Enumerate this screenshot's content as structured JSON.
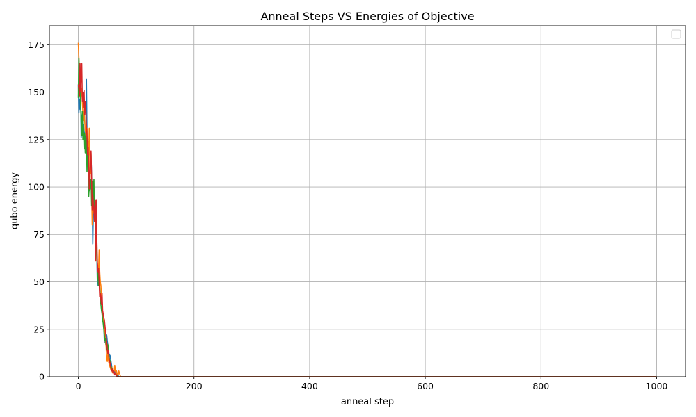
{
  "chart_data": {
    "type": "line",
    "title": "Anneal Steps VS Energies of Objective",
    "xlabel": "anneal step",
    "ylabel": "qubo energy",
    "xlim": [
      -50,
      1050
    ],
    "ylim": [
      0,
      185
    ],
    "xticks": [
      0,
      200,
      400,
      600,
      800,
      1000
    ],
    "yticks": [
      0,
      25,
      50,
      75,
      100,
      125,
      150,
      175
    ],
    "grid": true,
    "legend": "top-right",
    "series": [
      {
        "color": "#1f77b4",
        "points": [
          [
            0,
            154
          ],
          [
            1,
            139
          ],
          [
            2,
            146
          ],
          [
            3,
            141
          ],
          [
            4,
            152
          ],
          [
            5,
            126
          ],
          [
            6,
            138
          ],
          [
            7,
            130
          ],
          [
            8,
            127
          ],
          [
            9,
            133
          ],
          [
            10,
            129
          ],
          [
            11,
            121
          ],
          [
            12,
            129
          ],
          [
            13,
            126
          ],
          [
            14,
            157
          ],
          [
            15,
            128
          ],
          [
            16,
            122
          ],
          [
            17,
            124
          ],
          [
            18,
            110
          ],
          [
            19,
            103
          ],
          [
            20,
            107
          ],
          [
            22,
            117
          ],
          [
            24,
            95
          ],
          [
            25,
            70
          ],
          [
            26,
            86
          ],
          [
            27,
            98
          ],
          [
            28,
            93
          ],
          [
            30,
            83
          ],
          [
            31,
            82
          ],
          [
            32,
            64
          ],
          [
            33,
            48
          ],
          [
            34,
            52
          ],
          [
            35,
            56
          ],
          [
            36,
            49
          ],
          [
            38,
            42
          ],
          [
            40,
            44
          ],
          [
            41,
            40
          ],
          [
            42,
            31
          ],
          [
            43,
            32
          ],
          [
            44,
            27
          ],
          [
            45,
            18
          ],
          [
            46,
            25
          ],
          [
            48,
            21
          ],
          [
            49,
            22
          ],
          [
            50,
            19
          ],
          [
            52,
            14
          ],
          [
            53,
            12
          ],
          [
            55,
            11
          ],
          [
            57,
            7
          ],
          [
            58,
            5
          ],
          [
            60,
            3
          ],
          [
            62,
            2
          ],
          [
            64,
            3
          ],
          [
            66,
            1
          ],
          [
            68,
            1
          ],
          [
            70,
            0
          ],
          [
            80,
            0
          ],
          [
            1000,
            0
          ]
        ]
      },
      {
        "color": "#ff7f0e",
        "points": [
          [
            0,
            176
          ],
          [
            1,
            168
          ],
          [
            2,
            160
          ],
          [
            3,
            155
          ],
          [
            4,
            157
          ],
          [
            5,
            148
          ],
          [
            6,
            152
          ],
          [
            7,
            145
          ],
          [
            8,
            139
          ],
          [
            9,
            135
          ],
          [
            10,
            141
          ],
          [
            11,
            135
          ],
          [
            12,
            130
          ],
          [
            13,
            128
          ],
          [
            14,
            125
          ],
          [
            15,
            131
          ],
          [
            16,
            126
          ],
          [
            17,
            122
          ],
          [
            18,
            117
          ],
          [
            19,
            131
          ],
          [
            20,
            110
          ],
          [
            21,
            107
          ],
          [
            22,
            118
          ],
          [
            23,
            100
          ],
          [
            24,
            80
          ],
          [
            25,
            95
          ],
          [
            26,
            92
          ],
          [
            27,
            86
          ],
          [
            28,
            89
          ],
          [
            29,
            84
          ],
          [
            30,
            72
          ],
          [
            31,
            75
          ],
          [
            32,
            63
          ],
          [
            33,
            59
          ],
          [
            34,
            57
          ],
          [
            35,
            56
          ],
          [
            36,
            67
          ],
          [
            37,
            55
          ],
          [
            38,
            50
          ],
          [
            39,
            48
          ],
          [
            40,
            42
          ],
          [
            41,
            40
          ],
          [
            42,
            33
          ],
          [
            43,
            30
          ],
          [
            44,
            27
          ],
          [
            45,
            26
          ],
          [
            46,
            22
          ],
          [
            47,
            18
          ],
          [
            48,
            16
          ],
          [
            49,
            10
          ],
          [
            50,
            8
          ],
          [
            51,
            12
          ],
          [
            52,
            9
          ],
          [
            53,
            7
          ],
          [
            54,
            6
          ],
          [
            55,
            5
          ],
          [
            56,
            4
          ],
          [
            57,
            3
          ],
          [
            58,
            5
          ],
          [
            59,
            2
          ],
          [
            60,
            3
          ],
          [
            61,
            2
          ],
          [
            62,
            3
          ],
          [
            63,
            6
          ],
          [
            64,
            3
          ],
          [
            65,
            2
          ],
          [
            66,
            3
          ],
          [
            67,
            1
          ],
          [
            68,
            2
          ],
          [
            69,
            1
          ],
          [
            70,
            3
          ],
          [
            71,
            2
          ],
          [
            72,
            1
          ],
          [
            73,
            0
          ],
          [
            80,
            0
          ],
          [
            1000,
            0
          ]
        ]
      },
      {
        "color": "#2ca02c",
        "points": [
          [
            0,
            147
          ],
          [
            1,
            168
          ],
          [
            2,
            156
          ],
          [
            3,
            151
          ],
          [
            4,
            143
          ],
          [
            5,
            134
          ],
          [
            6,
            127
          ],
          [
            7,
            140
          ],
          [
            8,
            125
          ],
          [
            9,
            131
          ],
          [
            10,
            120
          ],
          [
            11,
            128
          ],
          [
            12,
            118
          ],
          [
            13,
            127
          ],
          [
            14,
            124
          ],
          [
            15,
            108
          ],
          [
            16,
            119
          ],
          [
            17,
            113
          ],
          [
            18,
            95
          ],
          [
            19,
            101
          ],
          [
            20,
            98
          ],
          [
            22,
            104
          ],
          [
            23,
            90
          ],
          [
            24,
            97
          ],
          [
            25,
            103
          ],
          [
            26,
            95
          ],
          [
            27,
            104
          ],
          [
            28,
            82
          ],
          [
            29,
            88
          ],
          [
            30,
            74
          ],
          [
            31,
            71
          ],
          [
            32,
            66
          ],
          [
            33,
            57
          ],
          [
            34,
            52
          ],
          [
            35,
            48
          ],
          [
            36,
            50
          ],
          [
            37,
            47
          ],
          [
            38,
            41
          ],
          [
            39,
            38
          ],
          [
            40,
            35
          ],
          [
            41,
            33
          ],
          [
            42,
            30
          ],
          [
            43,
            28
          ],
          [
            44,
            25
          ],
          [
            45,
            22
          ],
          [
            46,
            19
          ],
          [
            47,
            20
          ],
          [
            48,
            17
          ],
          [
            49,
            15
          ],
          [
            50,
            14
          ],
          [
            51,
            17
          ],
          [
            52,
            13
          ],
          [
            53,
            11
          ],
          [
            54,
            9
          ],
          [
            55,
            8
          ],
          [
            56,
            6
          ],
          [
            57,
            5
          ],
          [
            58,
            4
          ],
          [
            59,
            3
          ],
          [
            60,
            3
          ],
          [
            62,
            2
          ],
          [
            64,
            1
          ],
          [
            66,
            1
          ],
          [
            68,
            0
          ],
          [
            80,
            0
          ],
          [
            1000,
            0
          ]
        ]
      },
      {
        "color": "#d62728",
        "points": [
          [
            0,
            154
          ],
          [
            1,
            152
          ],
          [
            2,
            148
          ],
          [
            3,
            165
          ],
          [
            4,
            150
          ],
          [
            5,
            160
          ],
          [
            6,
            165
          ],
          [
            7,
            145
          ],
          [
            8,
            150
          ],
          [
            9,
            142
          ],
          [
            10,
            151
          ],
          [
            11,
            138
          ],
          [
            12,
            145
          ],
          [
            13,
            140
          ],
          [
            14,
            132
          ],
          [
            15,
            127
          ],
          [
            16,
            117
          ],
          [
            17,
            121
          ],
          [
            18,
            112
          ],
          [
            19,
            99
          ],
          [
            20,
            107
          ],
          [
            21,
            112
          ],
          [
            22,
            119
          ],
          [
            23,
            104
          ],
          [
            24,
            88
          ],
          [
            25,
            96
          ],
          [
            26,
            91
          ],
          [
            27,
            88
          ],
          [
            28,
            82
          ],
          [
            29,
            93
          ],
          [
            30,
            61
          ],
          [
            31,
            93
          ],
          [
            32,
            72
          ],
          [
            33,
            60
          ],
          [
            34,
            55
          ],
          [
            35,
            57
          ],
          [
            36,
            50
          ],
          [
            37,
            42
          ],
          [
            38,
            44
          ],
          [
            39,
            41
          ],
          [
            40,
            38
          ],
          [
            41,
            44
          ],
          [
            42,
            35
          ],
          [
            43,
            33
          ],
          [
            44,
            31
          ],
          [
            45,
            30
          ],
          [
            46,
            27
          ],
          [
            47,
            24
          ],
          [
            48,
            21
          ],
          [
            49,
            18
          ],
          [
            50,
            15
          ],
          [
            51,
            12
          ],
          [
            52,
            14
          ],
          [
            53,
            10
          ],
          [
            54,
            8
          ],
          [
            55,
            7
          ],
          [
            56,
            5
          ],
          [
            57,
            4
          ],
          [
            58,
            3
          ],
          [
            59,
            4
          ],
          [
            60,
            2
          ],
          [
            61,
            3
          ],
          [
            62,
            2
          ],
          [
            63,
            1
          ],
          [
            64,
            2
          ],
          [
            65,
            1
          ],
          [
            66,
            1
          ],
          [
            67,
            0
          ],
          [
            80,
            0
          ],
          [
            1000,
            0
          ]
        ]
      }
    ]
  }
}
